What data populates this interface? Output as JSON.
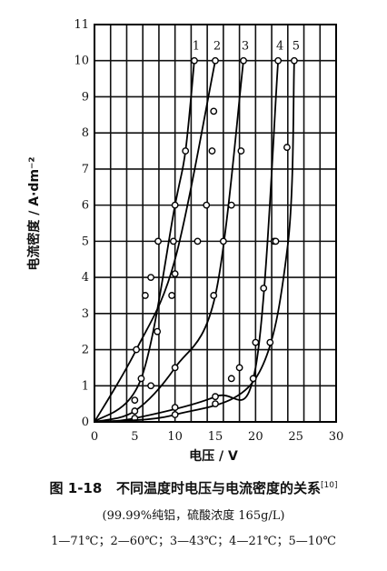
{
  "chart_data": {
    "type": "line",
    "xlabel": "电压 / V",
    "ylabel": "电流密度 / A·dm⁻²",
    "xlim": [
      0,
      30
    ],
    "ylim": [
      0,
      11
    ],
    "x_ticks": [
      "0",
      "5",
      "10",
      "15",
      "20",
      "25",
      "30"
    ],
    "y_ticks": [
      "0",
      "1",
      "2",
      "3",
      "4",
      "5",
      "6",
      "7",
      "8",
      "9",
      "10",
      "11"
    ],
    "grid": true,
    "series": [
      {
        "name": "1",
        "x": [
          0,
          5.8,
          10.0,
          11.3,
          12.4
        ],
        "y": [
          0,
          1.2,
          6.0,
          7.5,
          10.0
        ],
        "points_x": [
          5,
          5.8,
          6.3,
          7.0,
          7.9,
          9.8,
          10.0,
          11.3,
          12.4
        ],
        "points_y": [
          0.6,
          1.2,
          3.5,
          4.0,
          5.0,
          5.0,
          6.0,
          7.5,
          10.0
        ]
      },
      {
        "name": "2",
        "x": [
          0,
          5.2,
          10.0,
          15.0
        ],
        "y": [
          0,
          2.0,
          4.5,
          10.0
        ],
        "points_x": [
          5.2,
          7.8,
          9.6,
          10.0,
          12.8,
          13.9,
          14.6,
          14.8,
          15.0
        ],
        "points_y": [
          2.0,
          2.5,
          3.5,
          4.1,
          5.0,
          6.0,
          7.5,
          8.6,
          10.0
        ]
      },
      {
        "name": "3",
        "x": [
          0,
          5.0,
          10.0,
          15.0,
          18.5
        ],
        "y": [
          0,
          0.3,
          1.5,
          3.5,
          10.0
        ],
        "points_x": [
          5.0,
          7.0,
          10.0,
          14.8,
          16.0,
          17.0,
          18.2,
          18.5
        ],
        "points_y": [
          0.3,
          1.0,
          1.5,
          3.5,
          5.0,
          6.0,
          7.5,
          10.0
        ]
      },
      {
        "name": "4",
        "x": [
          0,
          5.0,
          15.0,
          20.0,
          22.8
        ],
        "y": [
          0,
          0.1,
          0.7,
          1.5,
          10.0
        ],
        "points_x": [
          5.0,
          10.0,
          15.0,
          17.0,
          18.0,
          20.0,
          21.0,
          22.3,
          22.8
        ],
        "points_y": [
          0.1,
          0.4,
          0.7,
          1.2,
          1.5,
          2.2,
          3.7,
          5.0,
          10.0
        ]
      },
      {
        "name": "5",
        "x": [
          0,
          10.0,
          20.0,
          24.0,
          24.8
        ],
        "y": [
          0,
          0.2,
          1.2,
          4.9,
          10.0
        ],
        "points_x": [
          10.0,
          15.0,
          19.7,
          21.8,
          22.5,
          23.9,
          24.8
        ],
        "points_y": [
          0.2,
          0.5,
          1.2,
          2.2,
          5.0,
          7.6,
          10.0
        ]
      }
    ]
  },
  "caption": {
    "figure_label": "图 1-18",
    "title": "不同温度时电压与电流密度的关系",
    "ref": "[10]",
    "subtitle": "(99.99%纯铝，硫酸浓度 165g/L)",
    "legend": "1—71℃；2—60℃；3—43℃；4—21℃；5—10℃"
  }
}
